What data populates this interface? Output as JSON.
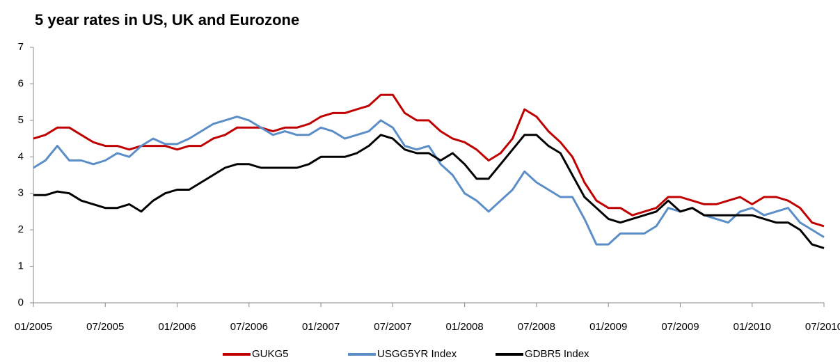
{
  "chart_data": {
    "type": "line",
    "title": "5 year rates in US, UK and Eurozone",
    "x": [
      "01/2005",
      "02/2005",
      "03/2005",
      "04/2005",
      "05/2005",
      "06/2005",
      "07/2005",
      "08/2005",
      "09/2005",
      "10/2005",
      "11/2005",
      "12/2005",
      "01/2006",
      "02/2006",
      "03/2006",
      "04/2006",
      "05/2006",
      "06/2006",
      "07/2006",
      "08/2006",
      "09/2006",
      "10/2006",
      "11/2006",
      "12/2006",
      "01/2007",
      "02/2007",
      "03/2007",
      "04/2007",
      "05/2007",
      "06/2007",
      "07/2007",
      "08/2007",
      "09/2007",
      "10/2007",
      "11/2007",
      "12/2007",
      "01/2008",
      "02/2008",
      "03/2008",
      "04/2008",
      "05/2008",
      "06/2008",
      "07/2008",
      "08/2008",
      "09/2008",
      "10/2008",
      "11/2008",
      "12/2008",
      "01/2009",
      "02/2009",
      "03/2009",
      "04/2009",
      "05/2009",
      "06/2009",
      "07/2009",
      "08/2009",
      "09/2009",
      "10/2009",
      "11/2009",
      "12/2009",
      "01/2010",
      "02/2010",
      "03/2010",
      "04/2010",
      "05/2010",
      "06/2010",
      "07/2010"
    ],
    "series": [
      {
        "name": "GUKG5",
        "color": "#c00000",
        "values": [
          4.5,
          4.6,
          4.8,
          4.8,
          4.6,
          4.4,
          4.3,
          4.3,
          4.2,
          4.3,
          4.3,
          4.3,
          4.2,
          4.3,
          4.3,
          4.5,
          4.6,
          4.8,
          4.8,
          4.8,
          4.7,
          4.8,
          4.8,
          4.9,
          5.1,
          5.2,
          5.2,
          5.3,
          5.4,
          5.7,
          5.7,
          5.2,
          5.0,
          5.0,
          4.7,
          4.5,
          4.4,
          4.2,
          3.9,
          4.1,
          4.5,
          5.3,
          5.1,
          4.7,
          4.4,
          4.0,
          3.3,
          2.8,
          2.6,
          2.6,
          2.4,
          2.5,
          2.6,
          2.9,
          2.9,
          2.8,
          2.7,
          2.7,
          2.8,
          2.9,
          2.7,
          2.9,
          2.9,
          2.8,
          2.6,
          2.2,
          2.1
        ]
      },
      {
        "name": "USGG5YR Index",
        "color": "#5b8ec7",
        "values": [
          3.7,
          3.9,
          4.3,
          3.9,
          3.9,
          3.8,
          3.9,
          4.1,
          4.0,
          4.3,
          4.5,
          4.35,
          4.35,
          4.5,
          4.7,
          4.9,
          5.0,
          5.1,
          5.0,
          4.8,
          4.6,
          4.7,
          4.6,
          4.6,
          4.8,
          4.7,
          4.5,
          4.6,
          4.7,
          5.0,
          4.8,
          4.3,
          4.2,
          4.3,
          3.8,
          3.5,
          3.0,
          2.8,
          2.5,
          2.8,
          3.1,
          3.6,
          3.3,
          3.1,
          2.9,
          2.9,
          2.3,
          1.6,
          1.6,
          1.9,
          1.9,
          1.9,
          2.1,
          2.6,
          2.5,
          2.6,
          2.4,
          2.3,
          2.2,
          2.5,
          2.6,
          2.4,
          2.5,
          2.6,
          2.2,
          2.0,
          1.8
        ]
      },
      {
        "name": "GDBR5 Index",
        "color": "#000000",
        "values": [
          2.95,
          2.95,
          3.05,
          3.0,
          2.8,
          2.7,
          2.6,
          2.6,
          2.7,
          2.5,
          2.8,
          3.0,
          3.1,
          3.1,
          3.3,
          3.5,
          3.7,
          3.8,
          3.8,
          3.7,
          3.7,
          3.7,
          3.7,
          3.8,
          4.0,
          4.0,
          4.0,
          4.1,
          4.3,
          4.6,
          4.5,
          4.2,
          4.1,
          4.1,
          3.9,
          4.1,
          3.8,
          3.4,
          3.4,
          3.8,
          4.2,
          4.6,
          4.6,
          4.3,
          4.1,
          3.5,
          2.9,
          2.6,
          2.3,
          2.2,
          2.3,
          2.4,
          2.5,
          2.8,
          2.5,
          2.6,
          2.4,
          2.4,
          2.4,
          2.4,
          2.4,
          2.3,
          2.2,
          2.2,
          2.0,
          1.6,
          1.5
        ]
      }
    ],
    "xlim": [
      "01/2005",
      "07/2010"
    ],
    "xticks": [
      "01/2005",
      "07/2005",
      "01/2006",
      "07/2006",
      "01/2007",
      "07/2007",
      "01/2008",
      "07/2008",
      "01/2009",
      "07/2009",
      "01/2010",
      "07/2010"
    ],
    "ylim": [
      0,
      7
    ],
    "yticks": [
      0,
      1,
      2,
      3,
      4,
      5,
      6,
      7
    ],
    "grid": false,
    "legend": "bottom"
  }
}
